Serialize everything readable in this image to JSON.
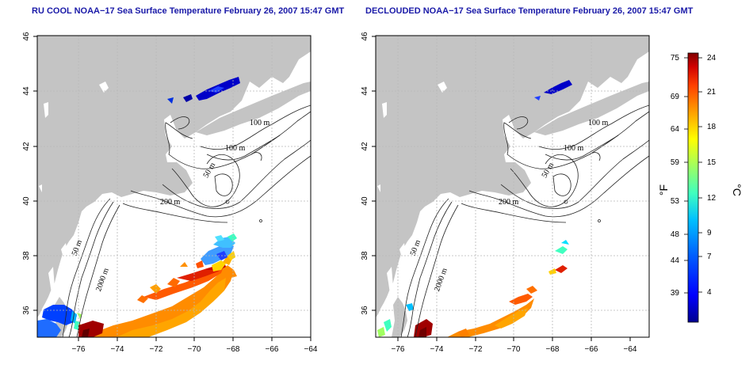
{
  "panels": [
    {
      "id": "left",
      "title": "RU COOL NOAA−17 Sea Surface Temperature February 26, 2007 15:47 GMT"
    },
    {
      "id": "right",
      "title": "DECLOUDED NOAA−17 Sea Surface Temperature February 26, 2007 15:47 GMT"
    }
  ],
  "map_axes": {
    "lon_ticks": [
      "−76",
      "−74",
      "−72",
      "−70",
      "−68",
      "−66",
      "−64"
    ],
    "lat_ticks": [
      "36",
      "38",
      "40",
      "42",
      "44",
      "46"
    ],
    "lon_range": [
      -77.2,
      -63.0
    ],
    "lat_range": [
      35.0,
      46.0
    ]
  },
  "isobath_labels": [
    "100 m",
    "100 m",
    "50 m",
    "200 m",
    "50 m",
    "2000 m"
  ],
  "colorbar": {
    "fahrenheit_label": "°F",
    "celsius_label": "°C",
    "fahrenheit_ticks": [
      "75",
      "69",
      "64",
      "59",
      "53",
      "48",
      "44",
      "39"
    ],
    "celsius_ticks": [
      "24",
      "21",
      "18",
      "15",
      "12",
      "9",
      "7",
      "4"
    ],
    "colors": [
      "#00008f",
      "#0000ff",
      "#0060ff",
      "#00c0ff",
      "#40ffbf",
      "#a0ff60",
      "#ffff00",
      "#ffa000",
      "#ff4000",
      "#d00000",
      "#800000"
    ]
  },
  "colors": {
    "land": "#c4c4c4",
    "title": "#1a1aa8",
    "grid": "#b8b8b8"
  }
}
